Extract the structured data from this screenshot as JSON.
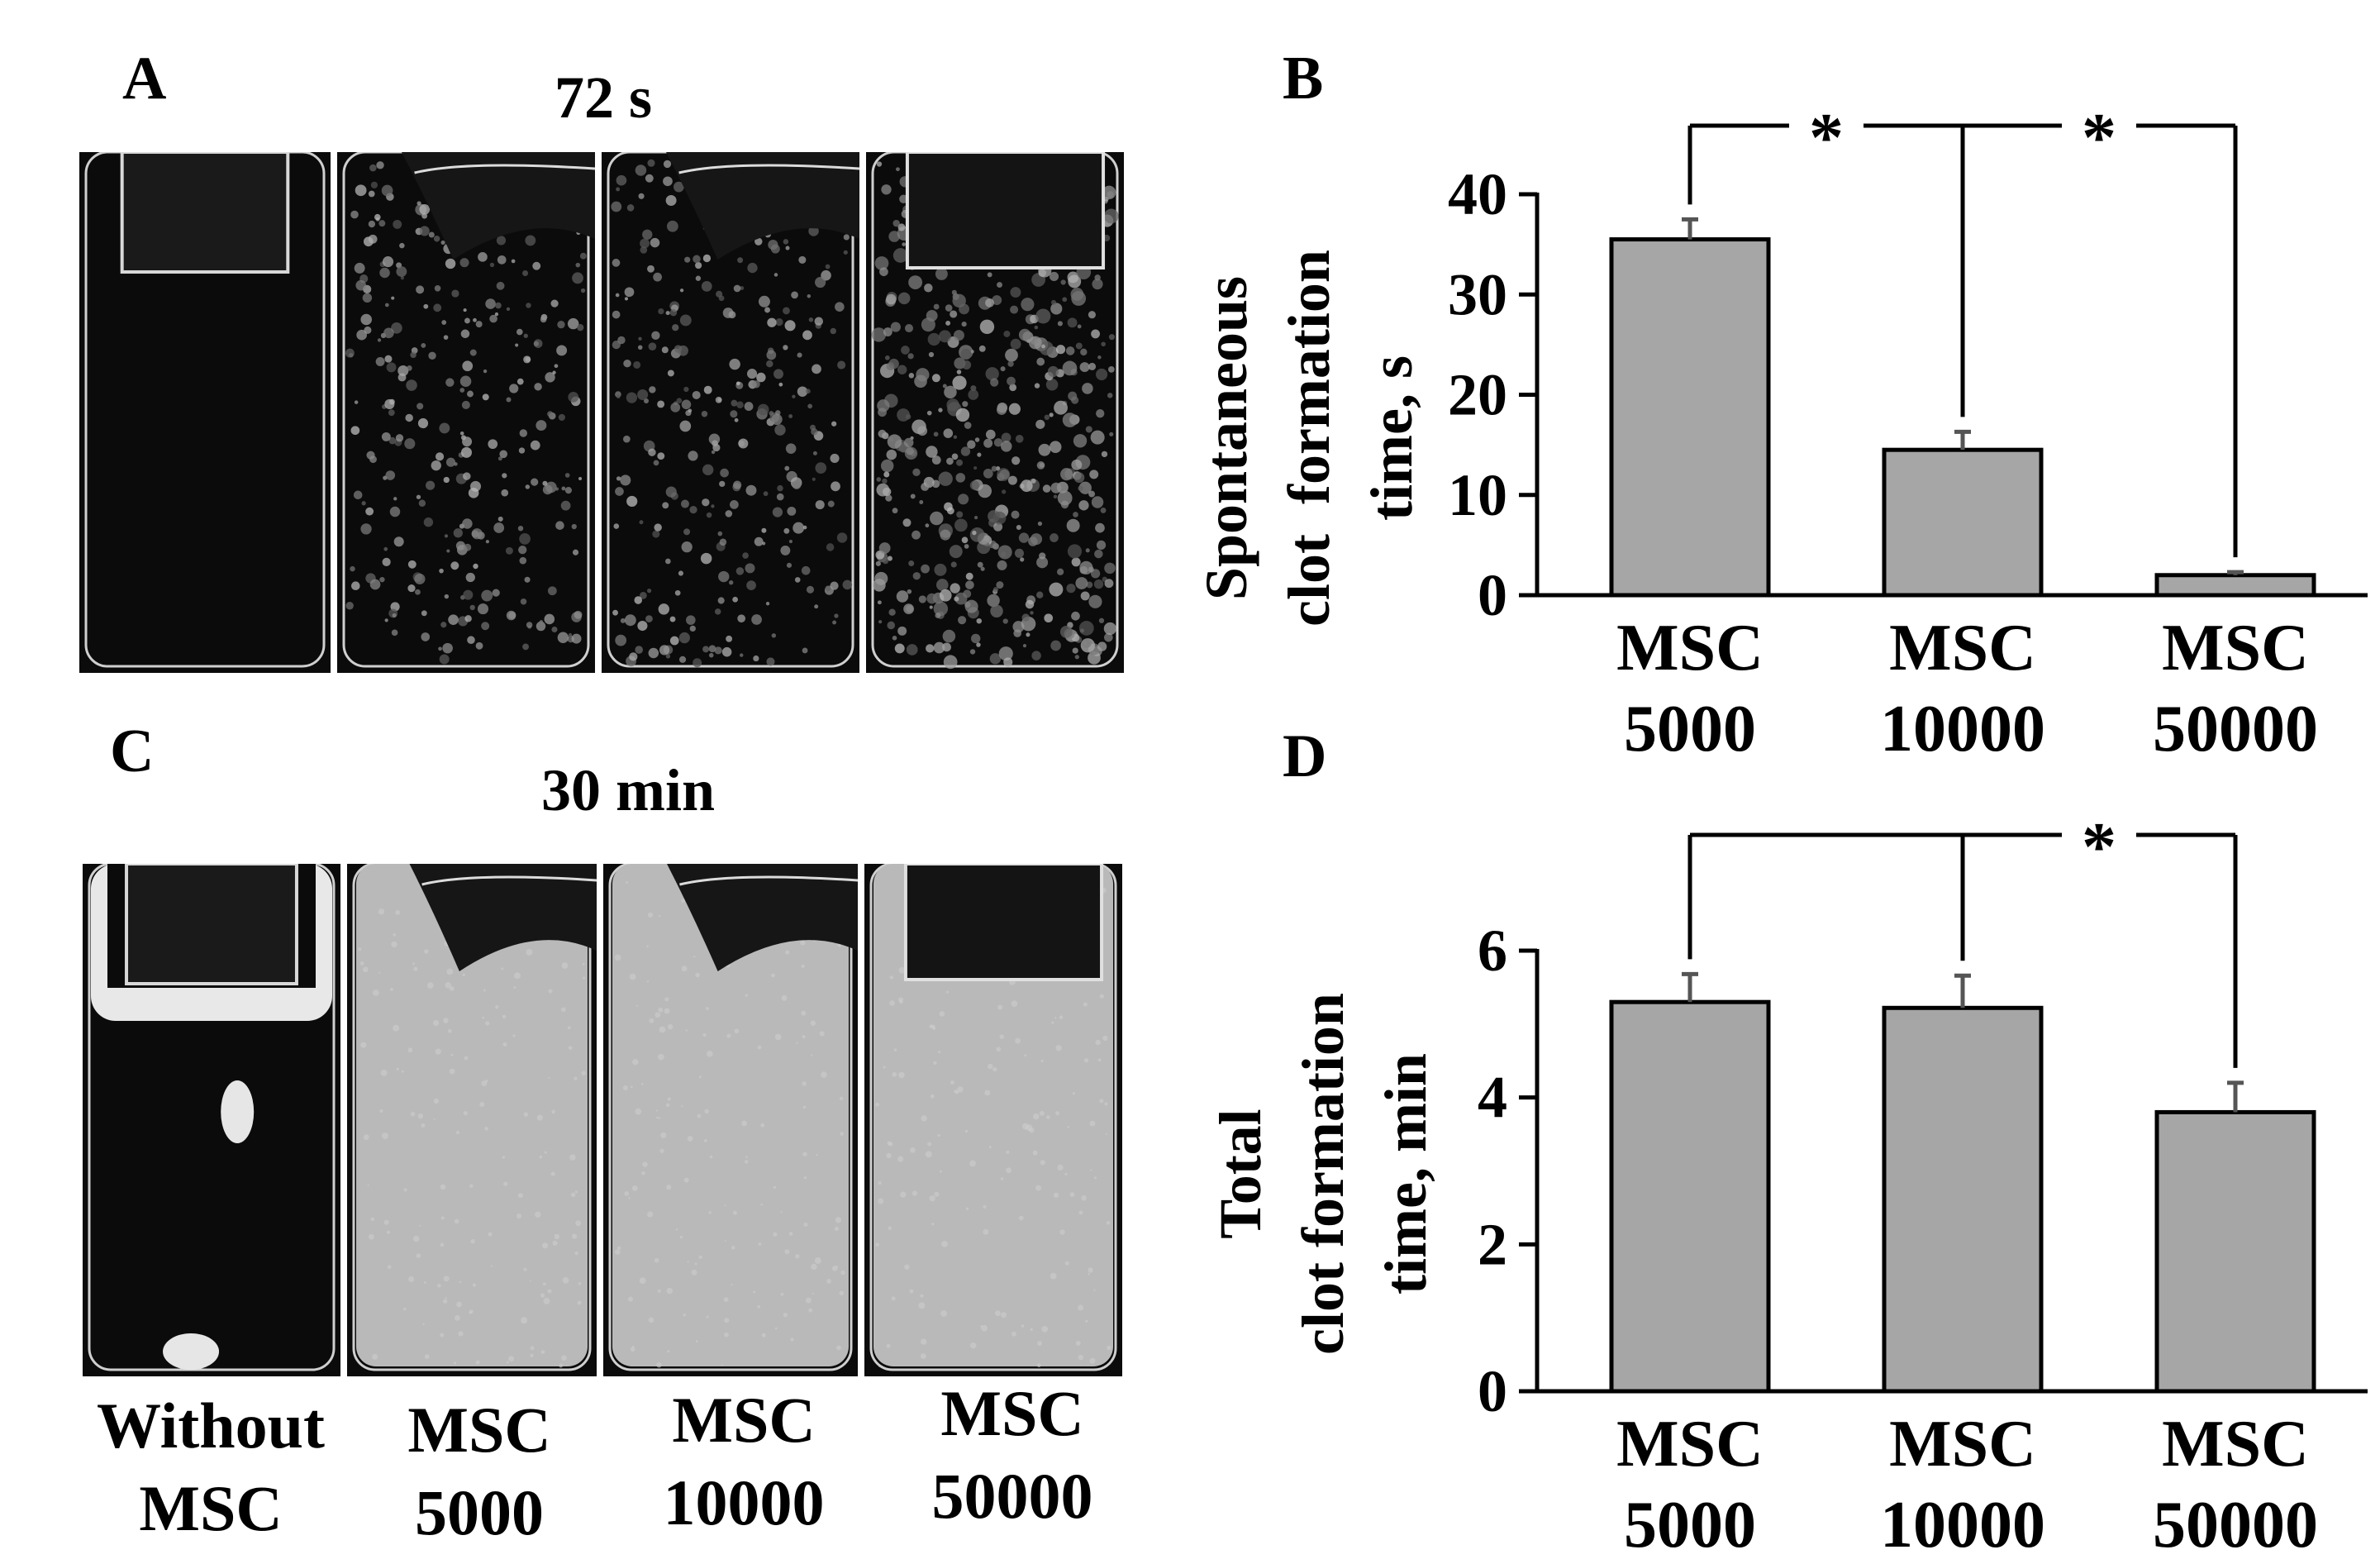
{
  "panels": {
    "A": {
      "letter": "A",
      "title": "72 s"
    },
    "B": {
      "letter": "B"
    },
    "C": {
      "letter": "C",
      "title": "30 min",
      "tube_labels": [
        [
          "Without",
          "MSC"
        ],
        [
          "MSC",
          "5000"
        ],
        [
          "MSC",
          "10000"
        ],
        [
          "MSC",
          "50000"
        ]
      ]
    },
    "D": {
      "letter": "D"
    }
  },
  "photos": {
    "A": [
      {
        "name": "Without MSC",
        "state": "clear liquid",
        "cap": "small"
      },
      {
        "name": "MSC 5000",
        "state": "speckled",
        "cap": "tilted"
      },
      {
        "name": "MSC 10000",
        "state": "speckled",
        "cap": "tilted"
      },
      {
        "name": "MSC 50000",
        "state": "dense speckled",
        "cap": "large"
      }
    ],
    "C": [
      {
        "name": "Without MSC",
        "state": "clear with drops",
        "cap": "small"
      },
      {
        "name": "MSC 5000",
        "state": "opaque gel",
        "cap": "tilted"
      },
      {
        "name": "MSC 10000",
        "state": "opaque gel",
        "cap": "tilted"
      },
      {
        "name": "MSC 50000",
        "state": "opaque gel",
        "cap": "large"
      }
    ]
  },
  "colors": {
    "bar_fill": "#a6a6a6",
    "bar_stroke": "#000000",
    "error_bar": "#555555",
    "gel": "#b9b9b9",
    "tube_dark": "#0b0b0b"
  },
  "chart_data": [
    {
      "panel": "B",
      "type": "bar",
      "categories": [
        [
          "MSC",
          "5000"
        ],
        [
          "MSC",
          "10000"
        ],
        [
          "MSC",
          "50000"
        ]
      ],
      "values": [
        35.5,
        14.5,
        2.0
      ],
      "errors": [
        2.0,
        1.8,
        0.3
      ],
      "ylabel": [
        "Spontaneous",
        "clot  formation",
        "time, s"
      ],
      "ylim": [
        0,
        40
      ],
      "yticks": [
        0,
        10,
        20,
        30,
        40
      ],
      "grid": false,
      "significance": [
        {
          "from": 0,
          "to": 2,
          "via": 1,
          "label": "*"
        },
        {
          "from": 1,
          "to": 2,
          "label": "*"
        }
      ]
    },
    {
      "panel": "D",
      "type": "bar",
      "categories": [
        [
          "MSC",
          "5000"
        ],
        [
          "MSC",
          "10000"
        ],
        [
          "MSC",
          "50000"
        ]
      ],
      "values": [
        5.3,
        5.22,
        3.8
      ],
      "errors": [
        0.38,
        0.44,
        0.4
      ],
      "ylabel": [
        "Total",
        "clot formation",
        "time, min"
      ],
      "ylim": [
        0,
        6
      ],
      "yticks": [
        0,
        2,
        4,
        6
      ],
      "grid": false,
      "significance": [
        {
          "from": 0,
          "to": 2,
          "via": 1,
          "label": "*"
        }
      ]
    }
  ]
}
